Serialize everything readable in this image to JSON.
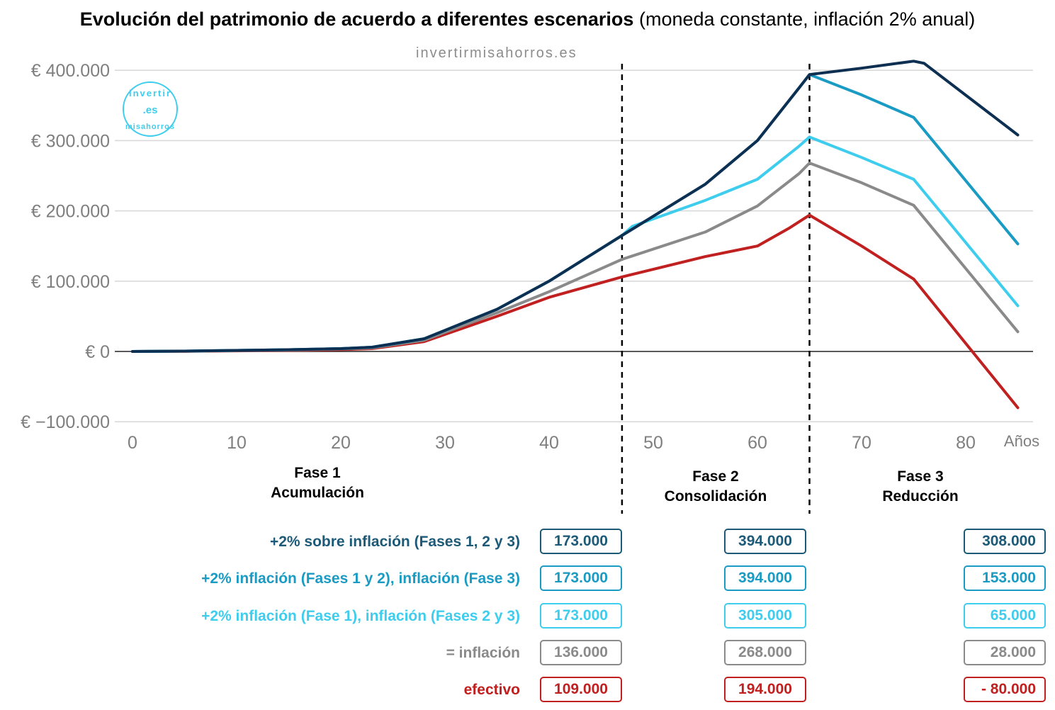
{
  "title": {
    "bold": "Evolución del patrimonio de acuerdo a diferentes escenarios",
    "normal": "(moneda constante, inflación 2% anual)"
  },
  "watermark": "invertirmisahorros.es",
  "logo": {
    "top": "invertir",
    "center": ".es",
    "bottom": "misahorros"
  },
  "phases": [
    {
      "line1": "Fase 1",
      "line2": "Acumulación"
    },
    {
      "line1": "Fase 2",
      "line2": "Consolidación"
    },
    {
      "line1": "Fase 3",
      "line2": "Reducción"
    }
  ],
  "colors": {
    "s1": "#0d2f52",
    "s2": "#1a9bc4",
    "s3": "#3fcdee",
    "s4": "#8a8a8a",
    "s5": "#c0201f",
    "row_label_1": "#1c5a78"
  },
  "chart_data": {
    "type": "line",
    "xlabel": "Años",
    "ylabel": "",
    "xlim": [
      0,
      88
    ],
    "ylim": [
      -100000,
      400000
    ],
    "x_ticks": [
      "0",
      "10",
      "20",
      "30",
      "40",
      "50",
      "60",
      "70",
      "80"
    ],
    "y_ticks": [
      "€ 400.000",
      "€ 300.000",
      "€ 200.000",
      "€ 100.000",
      "€ 0",
      "€ −100.000"
    ],
    "phase_boundaries": [
      47,
      65
    ],
    "grid": true,
    "series": [
      {
        "name": "+2% sobre inflación (Fases 1, 2 y 3)",
        "points": [
          [
            0,
            0
          ],
          [
            5,
            500
          ],
          [
            10,
            1500
          ],
          [
            15,
            2500
          ],
          [
            20,
            4000
          ],
          [
            23,
            6000
          ],
          [
            28,
            18000
          ],
          [
            35,
            60000
          ],
          [
            40,
            100000
          ],
          [
            47,
            165000
          ],
          [
            55,
            238000
          ],
          [
            60,
            300000
          ],
          [
            64,
            375000
          ],
          [
            65,
            394000
          ],
          [
            70,
            403000
          ],
          [
            75,
            413000
          ],
          [
            76,
            410000
          ],
          [
            85,
            308000
          ]
        ]
      },
      {
        "name": "+2% inflación (Fases 1 y 2), inflación (Fase 3)",
        "points": [
          [
            0,
            0
          ],
          [
            5,
            500
          ],
          [
            10,
            1500
          ],
          [
            15,
            2500
          ],
          [
            20,
            4000
          ],
          [
            23,
            6000
          ],
          [
            28,
            18000
          ],
          [
            35,
            60000
          ],
          [
            40,
            100000
          ],
          [
            47,
            165000
          ],
          [
            55,
            238000
          ],
          [
            60,
            300000
          ],
          [
            64,
            375000
          ],
          [
            65,
            394000
          ],
          [
            70,
            365000
          ],
          [
            75,
            333000
          ],
          [
            85,
            153000
          ]
        ]
      },
      {
        "name": "+2% inflación (Fase 1), inflación (Fases 2 y 3)",
        "points": [
          [
            0,
            0
          ],
          [
            5,
            500
          ],
          [
            10,
            1500
          ],
          [
            15,
            2500
          ],
          [
            20,
            4000
          ],
          [
            23,
            6000
          ],
          [
            28,
            18000
          ],
          [
            35,
            60000
          ],
          [
            40,
            100000
          ],
          [
            47,
            165000
          ],
          [
            48,
            178000
          ],
          [
            55,
            215000
          ],
          [
            60,
            245000
          ],
          [
            64,
            292000
          ],
          [
            65,
            305000
          ],
          [
            70,
            276000
          ],
          [
            75,
            245000
          ],
          [
            85,
            65000
          ]
        ]
      },
      {
        "name": "= inflación",
        "points": [
          [
            0,
            0
          ],
          [
            5,
            400
          ],
          [
            10,
            1200
          ],
          [
            15,
            2000
          ],
          [
            20,
            3500
          ],
          [
            23,
            5000
          ],
          [
            28,
            16000
          ],
          [
            35,
            55000
          ],
          [
            40,
            85000
          ],
          [
            47,
            131000
          ],
          [
            55,
            170000
          ],
          [
            60,
            207000
          ],
          [
            64,
            253000
          ],
          [
            65,
            268000
          ],
          [
            70,
            240000
          ],
          [
            75,
            208000
          ],
          [
            85,
            28000
          ]
        ]
      },
      {
        "name": "efectivo",
        "points": [
          [
            0,
            0
          ],
          [
            5,
            300
          ],
          [
            10,
            900
          ],
          [
            15,
            1500
          ],
          [
            20,
            2500
          ],
          [
            23,
            4000
          ],
          [
            28,
            14000
          ],
          [
            35,
            50000
          ],
          [
            40,
            77000
          ],
          [
            47,
            106000
          ],
          [
            55,
            135000
          ],
          [
            60,
            150000
          ],
          [
            63,
            175000
          ],
          [
            65,
            194000
          ],
          [
            70,
            150000
          ],
          [
            75,
            103000
          ],
          [
            85,
            -80000
          ]
        ]
      }
    ]
  },
  "summary_rows": [
    {
      "label": "+2% sobre inflación (Fases 1, 2 y 3)",
      "values": [
        "173.000",
        "394.000",
        "308.000"
      ]
    },
    {
      "label": "+2% inflación (Fases 1 y 2), inflación (Fase 3)",
      "values": [
        "173.000",
        "394.000",
        "153.000"
      ]
    },
    {
      "label": "+2% inflación (Fase 1), inflación (Fases 2 y 3)",
      "values": [
        "173.000",
        "305.000",
        "65.000"
      ]
    },
    {
      "label": "= inflación",
      "values": [
        "136.000",
        "268.000",
        "28.000"
      ]
    },
    {
      "label": "efectivo",
      "values": [
        "109.000",
        "194.000",
        "- 80.000"
      ]
    }
  ]
}
